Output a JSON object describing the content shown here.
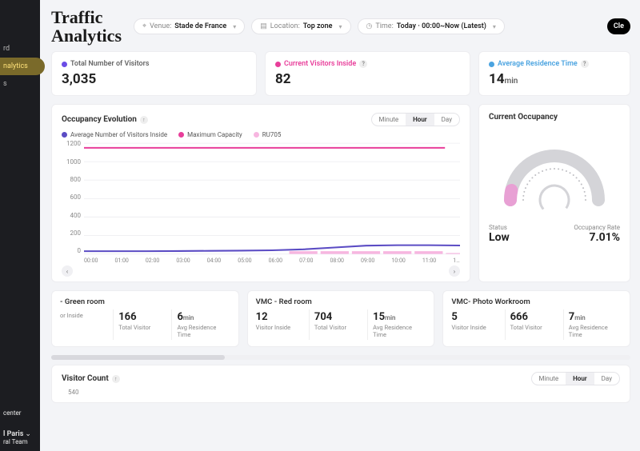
{
  "sidebar": {
    "items": [
      {
        "label": "rd"
      },
      {
        "label": "nalytics"
      },
      {
        "label": "s"
      }
    ],
    "bottom": {
      "label1": "center",
      "org": "l Paris",
      "team": "ral Team"
    }
  },
  "header": {
    "title": "Traffic Analytics",
    "venue_label": "Venue:",
    "venue_value": "Stade de France",
    "location_label": "Location:",
    "location_value": "Top zone",
    "time_label": "Time:",
    "time_value": "Today · 00:00~Now (Latest)",
    "clear_label": "Cle"
  },
  "kpis": {
    "total": {
      "label": "Total Number of Visitors",
      "value": "3,035",
      "dot_color": "#6b4de6"
    },
    "current": {
      "label": "Current Visitors Inside",
      "value": "82",
      "dot_color": "#e83e9a"
    },
    "avg_res": {
      "label": "Average Residence Time",
      "value": "14",
      "unit": "min",
      "dot_color": "#4aa3e0"
    }
  },
  "chart": {
    "title": "Occupancy Evolution",
    "seg": {
      "minute": "Minute",
      "hour": "Hour",
      "day": "Day",
      "active": "hour"
    },
    "legend": {
      "avg": {
        "label": "Average Number of Visitors Inside",
        "color": "#5b4cc4"
      },
      "max": {
        "label": "Maximum Capacity",
        "color": "#e83e9a"
      },
      "ru": {
        "label": "RU705",
        "color": "#f7b6e0"
      }
    },
    "ylim": [
      0,
      1200
    ],
    "yticks": [
      "1200",
      "1000",
      "800",
      "600",
      "400",
      "200",
      "0"
    ],
    "xticks": [
      "00:00",
      "01:00",
      "02:00",
      "03:00",
      "04:00",
      "05:00",
      "06:00",
      "07:00",
      "08:00",
      "09:00",
      "10:00",
      "11:00",
      "1…"
    ],
    "max_capacity_y": 1150,
    "avg_series": [
      30,
      30,
      30,
      32,
      34,
      36,
      40,
      50,
      70,
      90,
      95,
      95,
      92
    ],
    "ru_bars": {
      "start_index": 7,
      "values": [
        30,
        30,
        30,
        30,
        30,
        10
      ]
    },
    "grid_color": "#f0f0f3",
    "plot_bg": "#ffffff"
  },
  "gauge": {
    "title": "Current Occupancy",
    "pct": 7.01,
    "status_label": "Status",
    "status_value": "Low",
    "rate_label": "Occupancy Rate",
    "rate_value": "7.01%",
    "track_color": "#d4d4d8",
    "dot_color": "#bdbdc2",
    "fill_color": "#e8a0d4"
  },
  "rooms": [
    {
      "title": "- Green room",
      "cells": [
        {
          "value": "",
          "unit": "",
          "label": "or Inside"
        },
        {
          "value": "166",
          "unit": "",
          "label": "Total Visitor"
        },
        {
          "value": "6",
          "unit": "min",
          "label": "Avg Residence Time"
        }
      ]
    },
    {
      "title": "VMC - Red room",
      "cells": [
        {
          "value": "12",
          "unit": "",
          "label": "Visitor Inside"
        },
        {
          "value": "704",
          "unit": "",
          "label": "Total Visitor"
        },
        {
          "value": "15",
          "unit": "min",
          "label": "Avg Residence Time"
        }
      ]
    },
    {
      "title": "VMC- Photo Workroom",
      "cells": [
        {
          "value": "5",
          "unit": "",
          "label": "Visitor Inside"
        },
        {
          "value": "666",
          "unit": "",
          "label": "Total Visitor"
        },
        {
          "value": "7",
          "unit": "min",
          "label": "Avg Residence Time"
        }
      ]
    }
  ],
  "visitor_count": {
    "title": "Visitor Count",
    "seg": {
      "minute": "Minute",
      "hour": "Hour",
      "day": "Day",
      "active": "hour"
    },
    "ytick": "540"
  }
}
